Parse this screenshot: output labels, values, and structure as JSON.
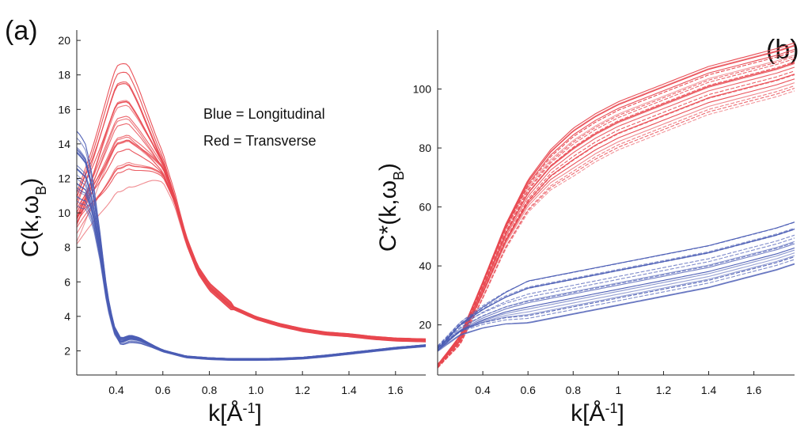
{
  "chart_data": [
    {
      "panel": "(a)",
      "type": "line",
      "ylabel": "C(k,ω",
      "ylabel_sub": "B",
      "ylabel_close": ")",
      "xlabel": "k[Å",
      "xlabel_sup": "-1",
      "xlabel_close": "]",
      "xlim": [
        0.23,
        1.73
      ],
      "ylim": [
        0.6,
        20.6
      ],
      "xticks": [
        0.4,
        0.6,
        0.8,
        1.0,
        1.2,
        1.4,
        1.6
      ],
      "xtick_labels": [
        "0.4",
        "0.6",
        "0.8",
        "1.0",
        "1.2",
        "1.4",
        "1.6"
      ],
      "yticks": [
        2,
        4,
        6,
        8,
        10,
        12,
        14,
        16,
        18,
        20
      ],
      "ytick_labels": [
        "2",
        "4",
        "6",
        "8",
        "10",
        "12",
        "14",
        "16",
        "18",
        "20"
      ],
      "annotations": [
        "Blue = Longitudinal",
        "Red = Transverse"
      ],
      "grid": false,
      "series": [
        {
          "group": "Transverse",
          "color": "#e8474f",
          "count": 22,
          "representative": {
            "x": [
              0.23,
              0.3,
              0.35,
              0.4,
              0.45,
              0.5,
              0.55,
              0.6,
              0.65,
              0.7,
              0.75,
              0.8,
              0.9,
              1.0,
              1.1,
              1.2,
              1.3,
              1.4,
              1.5,
              1.6,
              1.73
            ],
            "y": [
              9.6,
              11.6,
              13.2,
              14.8,
              15.0,
              14.3,
              13.5,
              12.6,
              10.8,
              8.4,
              6.7,
              5.7,
              4.5,
              3.9,
              3.5,
              3.2,
              3.0,
              2.9,
              2.75,
              2.65,
              2.6
            ]
          },
          "peak_range": [
            12.8,
            19.5
          ]
        },
        {
          "group": "Longitudinal",
          "color": "#4b5db5",
          "count": 20,
          "representative": {
            "x": [
              0.23,
              0.27,
              0.3,
              0.33,
              0.36,
              0.39,
              0.42,
              0.46,
              0.5,
              0.55,
              0.6,
              0.7,
              0.8,
              0.9,
              1.0,
              1.1,
              1.2,
              1.3,
              1.4,
              1.5,
              1.6,
              1.73
            ],
            "y": [
              12.5,
              12.0,
              10.5,
              8.0,
              5.0,
              3.2,
              2.5,
              2.7,
              2.6,
              2.3,
              2.0,
              1.65,
              1.55,
              1.5,
              1.5,
              1.52,
              1.58,
              1.7,
              1.85,
              2.0,
              2.15,
              2.3
            ]
          }
        }
      ]
    },
    {
      "panel": "(b)",
      "type": "line",
      "ylabel": "C*(k,ω",
      "ylabel_sub": "B",
      "ylabel_close": ")",
      "xlabel": "k[Å",
      "xlabel_sup": "-1",
      "xlabel_close": "]",
      "xlim": [
        0.2,
        1.78
      ],
      "ylim": [
        3,
        120
      ],
      "xticks": [
        0.4,
        0.6,
        0.8,
        1.0,
        1.2,
        1.4,
        1.6
      ],
      "xtick_labels": [
        "0.4",
        "0.6",
        "0.8",
        "1",
        "1.2",
        "1.4",
        "1.6"
      ],
      "yticks": [
        20,
        40,
        60,
        80,
        100
      ],
      "ytick_labels": [
        "20",
        "40",
        "60",
        "80",
        "100"
      ],
      "grid": false,
      "series": [
        {
          "group": "Transverse",
          "color": "#e8474f",
          "count": 22,
          "representative": {
            "x": [
              0.2,
              0.3,
              0.4,
              0.5,
              0.6,
              0.7,
              0.8,
              0.9,
              1.0,
              1.1,
              1.2,
              1.3,
              1.4,
              1.5,
              1.6,
              1.7,
              1.78
            ],
            "y": [
              6,
              15,
              32,
              50,
              64,
              73,
              79,
              84,
              88,
              91,
              94,
              97,
              100,
              102,
              104,
              106,
              108
            ]
          },
          "end_range": [
            102,
            118
          ]
        },
        {
          "group": "Longitudinal",
          "color": "#4b5db5",
          "count": 20,
          "representative": {
            "x": [
              0.2,
              0.3,
              0.4,
              0.5,
              0.6,
              0.7,
              0.8,
              0.9,
              1.0,
              1.1,
              1.2,
              1.3,
              1.4,
              1.5,
              1.6,
              1.7,
              1.78
            ],
            "y": [
              12,
              19,
              23,
              26,
              28,
              29.5,
              31,
              32.5,
              34,
              35.5,
              37,
              38.5,
              40,
              42,
              44,
              46,
              48
            ]
          },
          "end_range": [
            44,
            59
          ]
        }
      ]
    }
  ]
}
